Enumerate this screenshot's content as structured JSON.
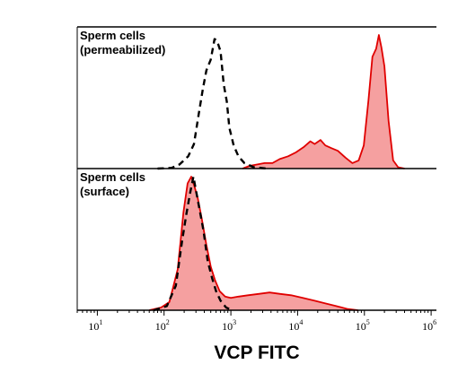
{
  "chart_data": {
    "type": "area",
    "xlabel": "VCP FITC",
    "xscale": "log",
    "xlim": [
      5,
      1200000
    ],
    "x_ticks": [
      {
        "base": "10",
        "exp": "1",
        "value": 10
      },
      {
        "base": "10",
        "exp": "2",
        "value": 100
      },
      {
        "base": "10",
        "exp": "3",
        "value": 1000
      },
      {
        "base": "10",
        "exp": "4",
        "value": 10000
      },
      {
        "base": "10",
        "exp": "5",
        "value": 100000
      },
      {
        "base": "10",
        "exp": "6",
        "value": 1000000
      }
    ],
    "colors": {
      "fill": "#f5a0a0",
      "stroke": "#e00000",
      "control": "#000000"
    },
    "panels": [
      {
        "label_lines": [
          "Sperm cells",
          "(permeabilized)"
        ],
        "ylim": [
          0,
          100
        ],
        "series": [
          {
            "style": "dashed",
            "points": [
              [
                80,
                0
              ],
              [
                130,
                0.5
              ],
              [
                170,
                3
              ],
              [
                230,
                9
              ],
              [
                280,
                18
              ],
              [
                330,
                40
              ],
              [
                380,
                58
              ],
              [
                430,
                72
              ],
              [
                500,
                80
              ],
              [
                570,
                95
              ],
              [
                620,
                94
              ],
              [
                700,
                86
              ],
              [
                780,
                62
              ],
              [
                870,
                49
              ],
              [
                950,
                30
              ],
              [
                1100,
                17
              ],
              [
                1300,
                9
              ],
              [
                1600,
                4
              ],
              [
                2200,
                1
              ],
              [
                3500,
                0
              ]
            ]
          },
          {
            "style": "filled",
            "points": [
              [
                1500,
                0
              ],
              [
                1900,
                2
              ],
              [
                2500,
                3
              ],
              [
                3200,
                4
              ],
              [
                4200,
                4
              ],
              [
                5400,
                7
              ],
              [
                7200,
                9
              ],
              [
                9500,
                12
              ],
              [
                12500,
                16
              ],
              [
                15500,
                20
              ],
              [
                18000,
                18
              ],
              [
                22000,
                21
              ],
              [
                26000,
                17
              ],
              [
                32000,
                15
              ],
              [
                40000,
                13
              ],
              [
                52000,
                8
              ],
              [
                66000,
                4
              ],
              [
                82000,
                6
              ],
              [
                98000,
                17
              ],
              [
                115000,
                50
              ],
              [
                132000,
                82
              ],
              [
                150000,
                88
              ],
              [
                165000,
                98
              ],
              [
                180000,
                89
              ],
              [
                200000,
                75
              ],
              [
                230000,
                35
              ],
              [
                270000,
                6
              ],
              [
                320000,
                1
              ],
              [
                400000,
                0
              ]
            ]
          }
        ]
      },
      {
        "label_lines": [
          "Sperm cells",
          "(surface)"
        ],
        "ylim": [
          0,
          100
        ],
        "series": [
          {
            "style": "dashed",
            "points": [
              [
                70,
                0
              ],
              [
                110,
                3
              ],
              [
                150,
                18
              ],
              [
                185,
                50
              ],
              [
                215,
                70
              ],
              [
                245,
                86
              ],
              [
                275,
                98
              ],
              [
                300,
                88
              ],
              [
                340,
                74
              ],
              [
                390,
                58
              ],
              [
                450,
                36
              ],
              [
                520,
                24
              ],
              [
                600,
                14
              ],
              [
                700,
                7
              ],
              [
                850,
                2
              ],
              [
                1050,
                0
              ]
            ]
          },
          {
            "style": "filled",
            "points": [
              [
                60,
                0
              ],
              [
                90,
                2
              ],
              [
                120,
                6
              ],
              [
                160,
                30
              ],
              [
                195,
                72
              ],
              [
                225,
                93
              ],
              [
                255,
                98
              ],
              [
                285,
                91
              ],
              [
                320,
                82
              ],
              [
                370,
                66
              ],
              [
                430,
                48
              ],
              [
                500,
                32
              ],
              [
                580,
                22
              ],
              [
                680,
                14
              ],
              [
                820,
                10
              ],
              [
                1000,
                9
              ],
              [
                1300,
                10
              ],
              [
                1800,
                11
              ],
              [
                2600,
                12
              ],
              [
                3800,
                13
              ],
              [
                5500,
                12
              ],
              [
                8000,
                11
              ],
              [
                12000,
                9
              ],
              [
                18000,
                7
              ],
              [
                26000,
                5
              ],
              [
                38000,
                3
              ],
              [
                55000,
                1
              ],
              [
                80000,
                0
              ]
            ]
          }
        ]
      }
    ]
  }
}
